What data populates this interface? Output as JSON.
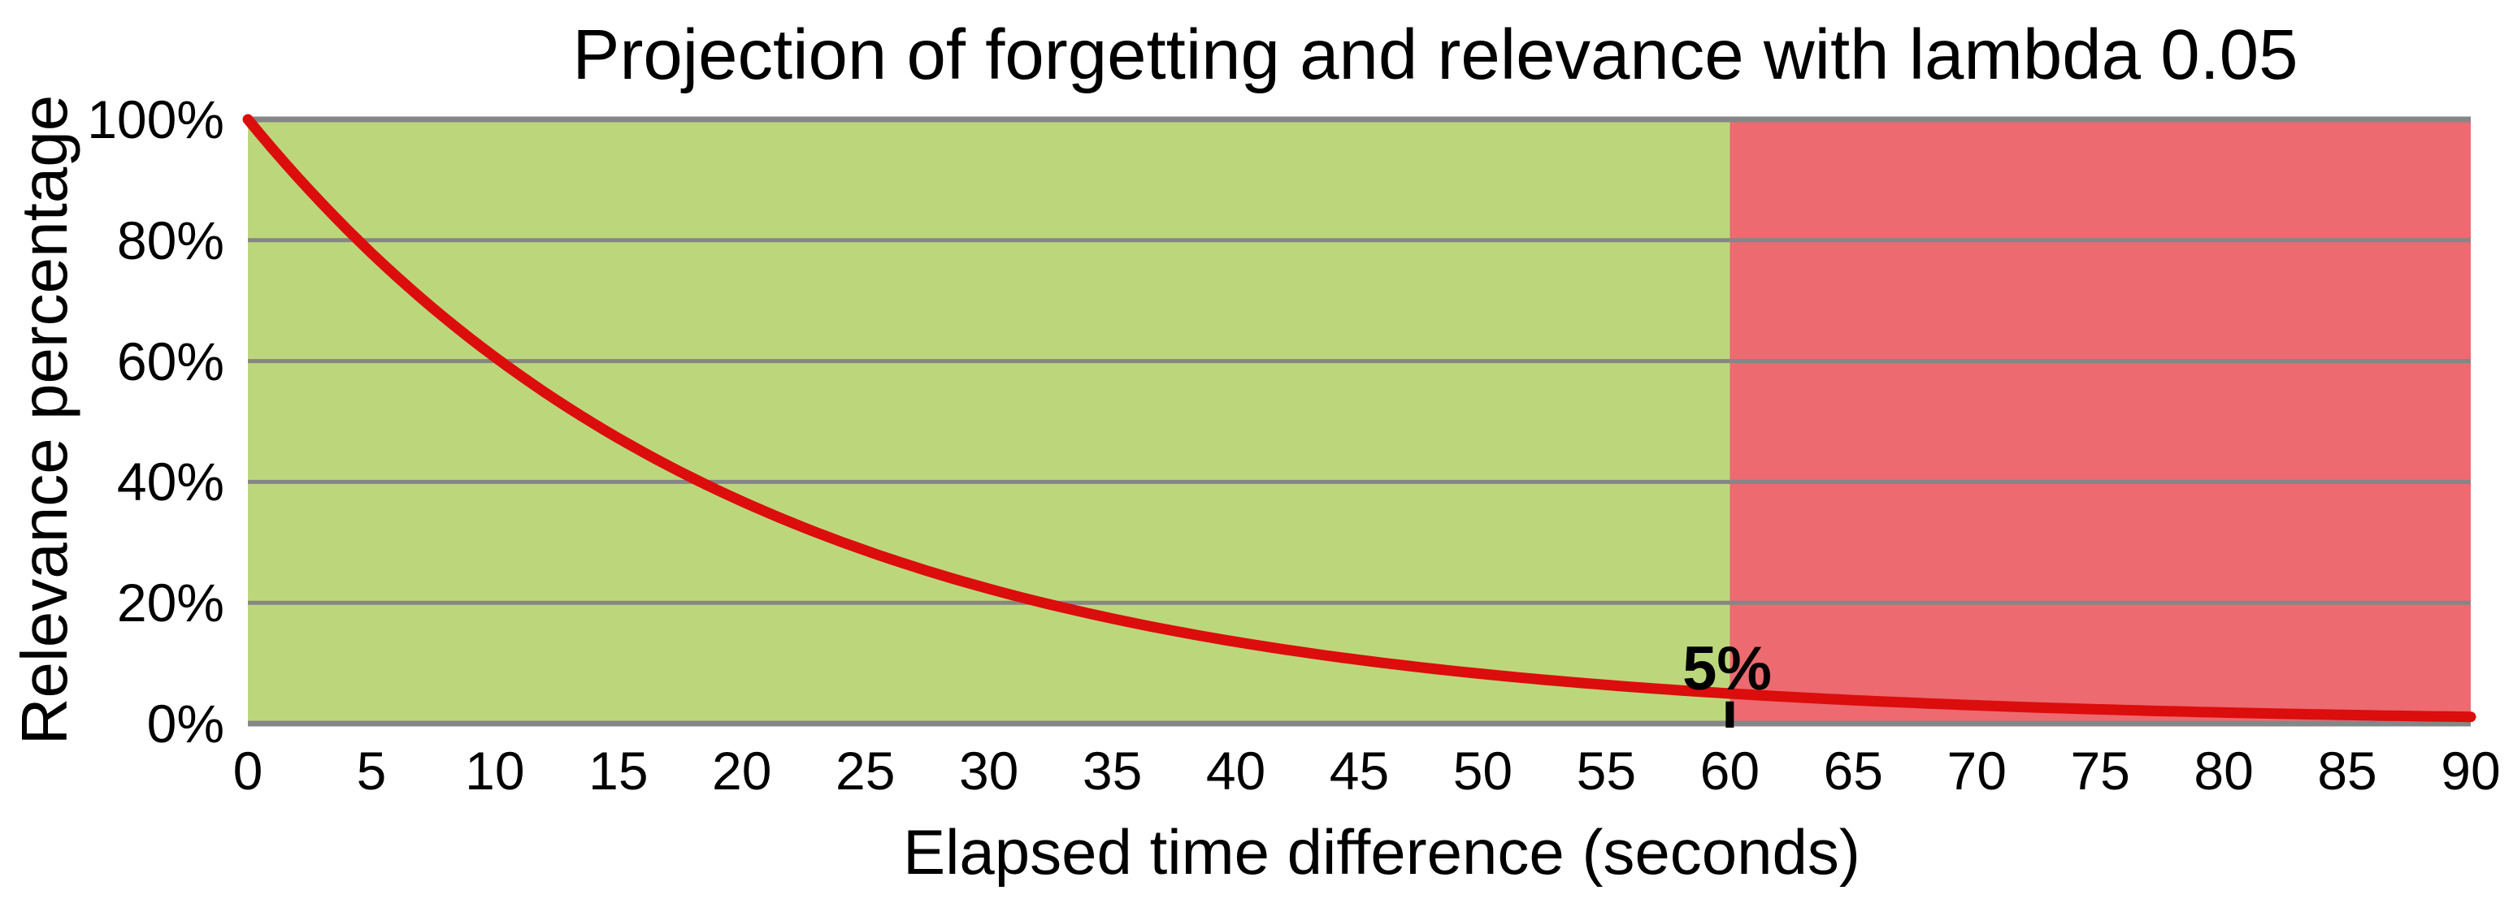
{
  "chart_data": {
    "type": "line",
    "title": "Projection of forgetting and relevance with lambda 0.05",
    "xlabel": "Elapsed time difference (seconds)",
    "ylabel": "Relevance percentage",
    "xlim": [
      0,
      90
    ],
    "ylim": [
      0,
      100
    ],
    "x_ticks": [
      0,
      5,
      10,
      15,
      20,
      25,
      30,
      35,
      40,
      45,
      50,
      55,
      60,
      65,
      70,
      75,
      80,
      85,
      90
    ],
    "y_ticks": [
      {
        "value": 0,
        "label": "0%"
      },
      {
        "value": 20,
        "label": "20%"
      },
      {
        "value": 40,
        "label": "40%"
      },
      {
        "value": 60,
        "label": "60%"
      },
      {
        "value": 80,
        "label": "80%"
      },
      {
        "value": 100,
        "label": "100%"
      }
    ],
    "grid": true,
    "legend": false,
    "lambda": 0.05,
    "series": [
      {
        "name": "relevance-decay",
        "color": "#dc0d0d",
        "x": [
          0,
          5,
          10,
          15,
          20,
          25,
          30,
          35,
          40,
          45,
          50,
          55,
          60,
          65,
          70,
          75,
          80,
          85,
          90
        ],
        "y": [
          100,
          77.9,
          60.7,
          47.2,
          36.8,
          28.7,
          22.3,
          17.4,
          13.5,
          10.5,
          8.2,
          6.4,
          5.0,
          3.9,
          3.0,
          2.4,
          1.8,
          1.4,
          1.1
        ]
      }
    ],
    "regions": [
      {
        "name": "green-zone",
        "from": 0,
        "to": 60,
        "color": "#bcd77b"
      },
      {
        "name": "red-zone",
        "from": 60,
        "to": 90,
        "color": "#ec6a70"
      }
    ],
    "annotation": {
      "text": "5%",
      "x": 60,
      "y": 5
    }
  },
  "colors": {
    "background": "#ffffff",
    "gridline": "#868686",
    "axis_line": "#868686",
    "curve": "#dc0d0d",
    "region_green": "#bcd77b",
    "region_red": "#ec6a70",
    "marker_tick": "#000000",
    "text": "#000000"
  }
}
